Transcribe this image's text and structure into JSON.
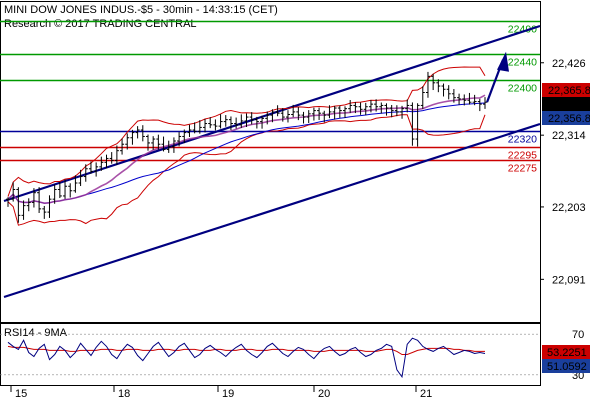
{
  "header": {
    "line1": "MINI DOW JONES INDUS.-$5 - 30min - 14:33:15 (CET)",
    "line2": "Research © 2017 TRADING CENTRAL"
  },
  "colors": {
    "resistance": "#009900",
    "support": "#cc0000",
    "pivot": "#000099",
    "channel": "#000080",
    "bollinger": "#cc0000",
    "ma_blue": "#0000cc",
    "ma_purple": "#993399",
    "price_tag": "#cc0000",
    "current_tag": "#000000",
    "ma_tag": "#1a3f9c",
    "rsi_line": "#000080",
    "rsi_ma": "#cc0000",
    "rsi_tag": "#cc0000",
    "rsi_ma_tag": "#1a3f9c"
  },
  "chart_data": [
    {
      "type": "candlestick",
      "title": "MINI DOW JONES INDUS.-$5 - 30min - 14:33:15 (CET)",
      "x_tick_labels": [
        "15",
        "18",
        "19",
        "20",
        "21"
      ],
      "y_tick_labels": [
        "22,426",
        "22,314",
        "22,203",
        "22,091"
      ],
      "ylim": [
        22025,
        22520
      ],
      "levels": [
        {
          "value": 22490,
          "label": "22490",
          "kind": "resistance"
        },
        {
          "value": 22440,
          "label": "22440",
          "kind": "resistance"
        },
        {
          "value": 22400,
          "label": "22400",
          "kind": "resistance"
        },
        {
          "value": 22320,
          "label": "22320",
          "kind": "pivot"
        },
        {
          "value": 22295,
          "label": "22295",
          "kind": "support"
        },
        {
          "value": 22275,
          "label": "22275",
          "kind": "support"
        }
      ],
      "price_tags": [
        {
          "label": "22,365.8",
          "kind": "price_tag"
        },
        {
          "label": "22,365",
          "kind": "current_tag"
        },
        {
          "label": "22,356.8",
          "kind": "ma_tag"
        }
      ],
      "close_series": [
        22215,
        22230,
        22190,
        22205,
        22210,
        22225,
        22200,
        22195,
        22215,
        22230,
        22220,
        22235,
        22228,
        22240,
        22250,
        22262,
        22258,
        22265,
        22272,
        22278,
        22275,
        22290,
        22300,
        22310,
        22318,
        22322,
        22312,
        22302,
        22308,
        22300,
        22292,
        22296,
        22305,
        22312,
        22318,
        22322,
        22320,
        22326,
        22332,
        22330,
        22328,
        22335,
        22338,
        22332,
        22330,
        22336,
        22342,
        22338,
        22335,
        22340,
        22345,
        22350,
        22348,
        22342,
        22346,
        22350,
        22345,
        22342,
        22347,
        22352,
        22348,
        22345,
        22350,
        22356,
        22352,
        22355,
        22360,
        22358,
        22354,
        22358,
        22362,
        22358,
        22360,
        22356,
        22352,
        22350,
        22355,
        22360,
        22308,
        22360,
        22380,
        22405,
        22395,
        22390,
        22385,
        22378,
        22372,
        22370,
        22368,
        22365,
        22366,
        22362,
        22365
      ]
    },
    {
      "type": "line",
      "title": "RSI14 - 9MA",
      "y_tick_labels": [
        "70",
        "30"
      ],
      "ylim": [
        20,
        80
      ],
      "series": [
        {
          "name": "RSI14",
          "last_label": "51.0592"
        },
        {
          "name": "9MA",
          "last_label": "53.2251"
        }
      ],
      "rsi_values": [
        62,
        58,
        55,
        64,
        52,
        48,
        56,
        60,
        45,
        50,
        58,
        54,
        47,
        52,
        61,
        55,
        49,
        57,
        63,
        58,
        50,
        46,
        54,
        60,
        57,
        49,
        44,
        51,
        58,
        62,
        55,
        48,
        52,
        58,
        61,
        54,
        47,
        50,
        56,
        59,
        55,
        52,
        48,
        53,
        57,
        60,
        54,
        50,
        47,
        52,
        58,
        61,
        56,
        51,
        48,
        53,
        57,
        55,
        50,
        46,
        52,
        56,
        58,
        53,
        49,
        51,
        55,
        57,
        52,
        48,
        50,
        54,
        56,
        60,
        58,
        35,
        28,
        60,
        66,
        64,
        58,
        55,
        53,
        56,
        58,
        54,
        50,
        52,
        54,
        53,
        51,
        52,
        51
      ],
      "ma_values": [
        58,
        57,
        57,
        57,
        56,
        55,
        55,
        55,
        54,
        54,
        54,
        54,
        53,
        53,
        54,
        54,
        54,
        54,
        55,
        55,
        55,
        54,
        54,
        55,
        55,
        55,
        54,
        54,
        54,
        55,
        55,
        55,
        54,
        54,
        55,
        55,
        55,
        54,
        54,
        54,
        55,
        55,
        54,
        54,
        54,
        55,
        55,
        55,
        54,
        54,
        54,
        55,
        55,
        55,
        54,
        54,
        54,
        54,
        54,
        53,
        53,
        53,
        54,
        54,
        54,
        54,
        54,
        54,
        54,
        53,
        53,
        53,
        54,
        55,
        55,
        53,
        50,
        50,
        52,
        54,
        55,
        56,
        56,
        56,
        56,
        56,
        55,
        55,
        54,
        54,
        53,
        53,
        53
      ]
    }
  ]
}
